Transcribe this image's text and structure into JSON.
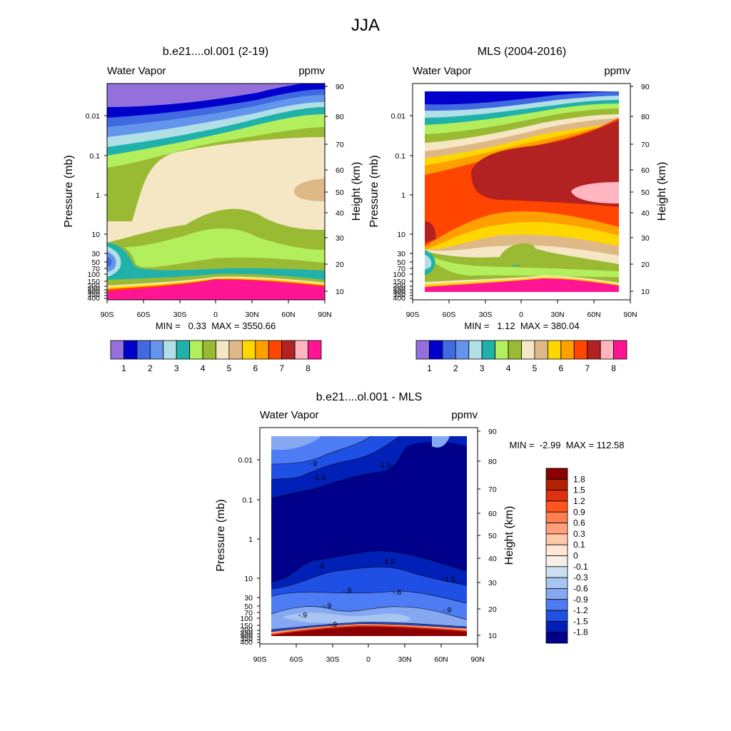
{
  "figure": {
    "title": "JJA"
  },
  "chart_data": [
    {
      "type": "contour",
      "title": "b.e21....ol.001 (2-19)",
      "left_label": "Water Vapor",
      "right_label": "ppmv",
      "xlabel": "",
      "ylabel": "Pressure (mb)",
      "y2label": "Height (km)",
      "xticks": [
        "90S",
        "60S",
        "30S",
        "0",
        "30N",
        "60N",
        "90N"
      ],
      "yticks": [
        "0.01",
        "0.1",
        "1",
        "10",
        "30",
        "50",
        "70",
        "100",
        "150",
        "200",
        "250",
        "300",
        "350",
        "400"
      ],
      "y2ticks": [
        "90",
        "80",
        "70",
        "60",
        "50",
        "40",
        "30",
        "20",
        "10"
      ],
      "xlim": [
        -90,
        90
      ],
      "ylim_mb": [
        400,
        0.0015
      ],
      "min_label": "MIN =   0.33  MAX = 3550.66",
      "colorbar": {
        "orientation": "horizontal",
        "tick_labels": [
          "1",
          "2",
          "3",
          "4",
          "5",
          "6",
          "7",
          "8"
        ],
        "colors": [
          "#9370db",
          "#0000cd",
          "#4169e1",
          "#6495ed",
          "#b0e0e6",
          "#20b2aa",
          "#b3ee5c",
          "#9aba33",
          "#f5e6c4",
          "#deb887",
          "#ffd700",
          "#ff9f00",
          "#ff4500",
          "#b22222",
          "#ffb6c1",
          "#ff1493"
        ]
      }
    },
    {
      "type": "contour",
      "title": "MLS (2004-2016)",
      "left_label": "Water Vapor",
      "right_label": "ppmv",
      "xlabel": "",
      "ylabel": "Pressure (mb)",
      "y2label": "Height (km)",
      "xticks": [
        "90S",
        "60S",
        "30S",
        "0",
        "30N",
        "60N",
        "90N"
      ],
      "yticks": [
        "0.01",
        "0.1",
        "1",
        "10",
        "30",
        "50",
        "70",
        "100",
        "150",
        "200",
        "250",
        "300",
        "350",
        "400"
      ],
      "y2ticks": [
        "90",
        "80",
        "70",
        "60",
        "50",
        "40",
        "30",
        "20",
        "10"
      ],
      "xlim": [
        -90,
        90
      ],
      "ylim_mb": [
        400,
        0.0015
      ],
      "data_extent_lat": [
        -82,
        82
      ],
      "min_label": "MIN =   1.12  MAX = 380.04",
      "colorbar": {
        "orientation": "horizontal",
        "tick_labels": [
          "1",
          "2",
          "3",
          "4",
          "5",
          "6",
          "7",
          "8"
        ],
        "colors": [
          "#9370db",
          "#0000cd",
          "#4169e1",
          "#6495ed",
          "#b0e0e6",
          "#20b2aa",
          "#b3ee5c",
          "#9aba33",
          "#f5e6c4",
          "#deb887",
          "#ffd700",
          "#ff9f00",
          "#ff4500",
          "#b22222",
          "#ffb6c1",
          "#ff1493"
        ]
      }
    },
    {
      "type": "contour",
      "title": "b.e21....ol.001 - MLS",
      "left_label": "Water Vapor",
      "right_label": "ppmv",
      "xlabel": "",
      "ylabel": "Pressure (mb)",
      "y2label": "Height (km)",
      "xticks": [
        "90S",
        "60S",
        "30S",
        "0",
        "30N",
        "60N",
        "90N"
      ],
      "yticks": [
        "0.01",
        "0.1",
        "1",
        "10",
        "30",
        "50",
        "70",
        "100",
        "150",
        "200",
        "250",
        "300",
        "350",
        "400"
      ],
      "y2ticks": [
        "90",
        "80",
        "70",
        "60",
        "50",
        "40",
        "30",
        "20",
        "10"
      ],
      "xlim": [
        -90,
        90
      ],
      "ylim_mb": [
        400,
        0.0015
      ],
      "data_extent_lat": [
        -82,
        82
      ],
      "min_label": "MIN =  -2.99  MAX = 112.58",
      "contour_line_labels": [
        "-.9",
        "-1.5",
        "-1.5",
        "-.9",
        "-1.5",
        "-1.5",
        "-.9",
        "-.9",
        "-.6",
        "-.9",
        "-.9",
        "-.9"
      ],
      "colorbar": {
        "orientation": "vertical",
        "tick_labels": [
          "1.8",
          "1.5",
          "1.2",
          "0.9",
          "0.6",
          "0.3",
          "0.1",
          "0",
          "-0.1",
          "-0.3",
          "-0.6",
          "-0.9",
          "-1.2",
          "-1.5",
          "-1.8"
        ],
        "colors": [
          "#8b0000",
          "#b22200",
          "#e03010",
          "#ff5520",
          "#ff7f50",
          "#ffa07a",
          "#ffc8a8",
          "#ffe6d5",
          "#f5f0e6",
          "#cce0f5",
          "#a8c4f0",
          "#86a8f2",
          "#4d7cf5",
          "#1f50e6",
          "#0020b8",
          "#00008b"
        ]
      }
    }
  ]
}
